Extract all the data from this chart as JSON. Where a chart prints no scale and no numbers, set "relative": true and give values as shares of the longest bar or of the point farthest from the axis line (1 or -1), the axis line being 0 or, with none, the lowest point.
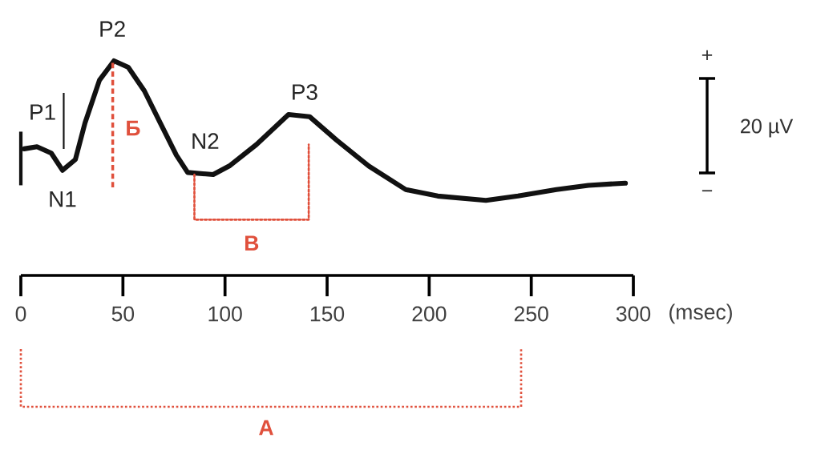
{
  "chart_data": {
    "type": "line",
    "relative": true,
    "xlabel": "(msec)",
    "xlim": [
      0,
      300
    ],
    "xticks": [
      0,
      50,
      100,
      150,
      200,
      250,
      300
    ],
    "marker": "none",
    "series": [
      {
        "color": "#111111",
        "line_style": "solid",
        "x": [
          1.6,
          7.9,
          14.9,
          20.4,
          26.7,
          31.4,
          38.5,
          45.6,
          52.6,
          60.5,
          68.3,
          76.2,
          81.7,
          94.2,
          102.1,
          115.4,
          131.1,
          141.4,
          154.7,
          170.4,
          188.5,
          204.2,
          227.8,
          243.5,
          262.3,
          278.0,
          296.1
        ],
        "values": [
          0.59,
          0.6,
          0.57,
          0.49,
          0.54,
          0.71,
          0.91,
          1,
          0.97,
          0.86,
          0.71,
          0.56,
          0.48,
          0.47,
          0.51,
          0.61,
          0.75,
          0.74,
          0.63,
          0.51,
          0.4,
          0.37,
          0.35,
          0.37,
          0.4,
          0.42,
          0.43
        ]
      },
      {
        "name": "В",
        "color": "#e0503c",
        "line_style": "dotted",
        "x": [
          85,
          85,
          141,
          141
        ],
        "values": [
          0.47,
          0.26,
          0.26,
          0.61
        ]
      }
    ],
    "annotations": [
      {
        "text": "N1",
        "x": 20.4,
        "y": 0.49
      },
      {
        "text": "P2",
        "x": 45.6,
        "y": 1
      },
      {
        "text": "N2",
        "x": 94.2,
        "y": 0.47
      },
      {
        "text": "P3",
        "x": 131.1,
        "y": 0.75
      },
      "+",
      "20 µV",
      "−",
      "A"
    ],
    "ref_lines": [
      {
        "axis": "x",
        "value": 0,
        "color": "#111111",
        "line_style": "solid"
      },
      {
        "axis": "x",
        "value": 21,
        "label": "P1",
        "color": "#111111",
        "line_style": "solid"
      },
      {
        "axis": "x",
        "value": 45,
        "label": "Б",
        "color": "#e0503c",
        "line_style": "dotted"
      }
    ]
  }
}
